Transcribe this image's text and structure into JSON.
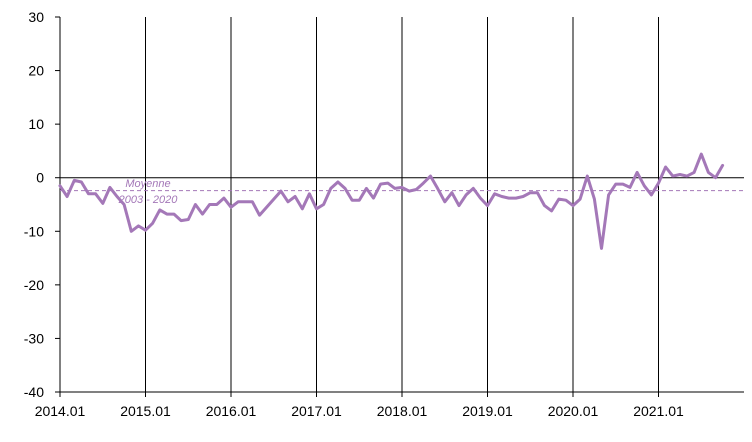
{
  "chart_data": {
    "type": "line",
    "title": "",
    "xlabel": "",
    "ylabel": "",
    "ylim": [
      -40,
      30
    ],
    "yticks": [
      30,
      20,
      10,
      0,
      -10,
      -20,
      -30,
      -40
    ],
    "x_tick_labels": [
      "2014.01",
      "2015.01",
      "2016.01",
      "2017.01",
      "2018.01",
      "2019.01",
      "2020.01",
      "2021.01"
    ],
    "x_start": "2014.01",
    "vertical_gridlines": true,
    "horizontal_gridlines": false,
    "series": [
      {
        "color": "#a478b8",
        "values": [
          -1.5,
          -3.5,
          -0.5,
          -0.8,
          -3.0,
          -3.0,
          -4.8,
          -1.8,
          -3.5,
          -5.0,
          -10.0,
          -9.0,
          -9.8,
          -8.5,
          -6.0,
          -6.8,
          -6.8,
          -8.0,
          -7.8,
          -5.0,
          -6.8,
          -5.0,
          -5.0,
          -3.8,
          -5.5,
          -4.5,
          -4.5,
          -4.5,
          -7.0,
          -5.5,
          -4.0,
          -2.5,
          -4.5,
          -3.5,
          -5.8,
          -3.0,
          -5.8,
          -5.0,
          -2.0,
          -0.8,
          -2.0,
          -4.2,
          -4.2,
          -2.0,
          -3.8,
          -1.2,
          -1.0,
          -2.0,
          -1.8,
          -2.5,
          -2.2,
          -1.0,
          0.3,
          -2.0,
          -4.5,
          -2.8,
          -5.2,
          -3.2,
          -2.0,
          -3.8,
          -5.2,
          -3.0,
          -3.5,
          -3.8,
          -3.8,
          -3.5,
          -2.8,
          -2.8,
          -5.2,
          -6.2,
          -4.0,
          -4.2,
          -5.2,
          -4.0,
          0.3,
          -4.0,
          -13.2,
          -3.2,
          -1.2,
          -1.2,
          -1.8,
          1.0,
          -1.5,
          -3.2,
          -1.0,
          2.0,
          0.3,
          0.6,
          0.3,
          1.0,
          4.4,
          1.0,
          0.0,
          2.3
        ]
      },
      {
        "color": "#a478b8",
        "style": "dashed",
        "values": [
          -2.4
        ]
      }
    ],
    "annotation": {
      "line1": "Moyenne",
      "line2": "2003 - 2020",
      "color": "#a478b8"
    }
  }
}
